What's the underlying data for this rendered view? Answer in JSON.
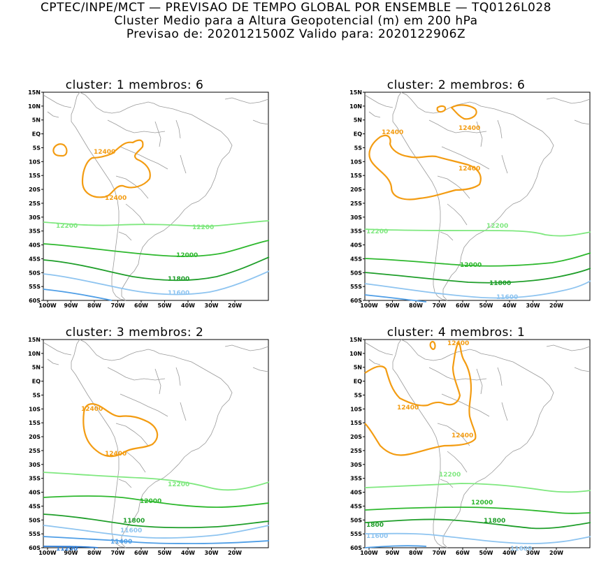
{
  "header": {
    "line1": "CPTEC/INPE/MCT — PREVISAO DE TEMPO GLOBAL POR ENSEMBLE — TQ0126L028",
    "line2": "Cluster Medio para a Altura Geopotencial (m) em 200 hPa",
    "line3": "Previsao de: 2020121500Z    Valido para: 2020122906Z"
  },
  "axes": {
    "lat_labels": [
      "15N",
      "10N",
      "5N",
      "EQ",
      "5S",
      "10S",
      "15S",
      "20S",
      "25S",
      "30S",
      "35S",
      "40S",
      "45S",
      "50S",
      "55S",
      "60S"
    ],
    "lon_labels": [
      "100W",
      "90W",
      "80W",
      "70W",
      "60W",
      "50W",
      "40W",
      "30W",
      "20W"
    ]
  },
  "colors": {
    "c12400": "#f39c12",
    "c12200": "#7fe87f",
    "c12000": "#2eb82e",
    "c11800": "#1f9e2a",
    "c11600": "#8ec4f0",
    "c11400": "#4f9ee6",
    "c11200": "#2b7bd6",
    "coast": "#9a9a9a"
  },
  "panels": [
    {
      "title": "cluster: 1   membros: 6",
      "labels": {
        "a": "12400",
        "b": "12400",
        "c": "12200",
        "d": "12200",
        "e": "12000",
        "f": "11800",
        "g": "11600"
      }
    },
    {
      "title": "cluster: 2   membros: 6",
      "labels": {
        "a": "12400",
        "b": "12400",
        "c": "12400",
        "d": "12200",
        "e": "12200",
        "f": "12000",
        "g": "11800",
        "h": "11600"
      }
    },
    {
      "title": "cluster: 3   membros: 2",
      "labels": {
        "a": "12400",
        "b": "12400",
        "c": "12200",
        "d": "12000",
        "e": "11800",
        "f": "11600",
        "g": "11400",
        "h": "11200"
      }
    },
    {
      "title": "cluster: 4   membros: 1",
      "labels": {
        "a": "12400",
        "b": "12400",
        "c": "12400",
        "d": "12200",
        "e": "12000",
        "f": "11800",
        "g": "1800",
        "h": "11600",
        "i": "11600"
      }
    }
  ]
}
